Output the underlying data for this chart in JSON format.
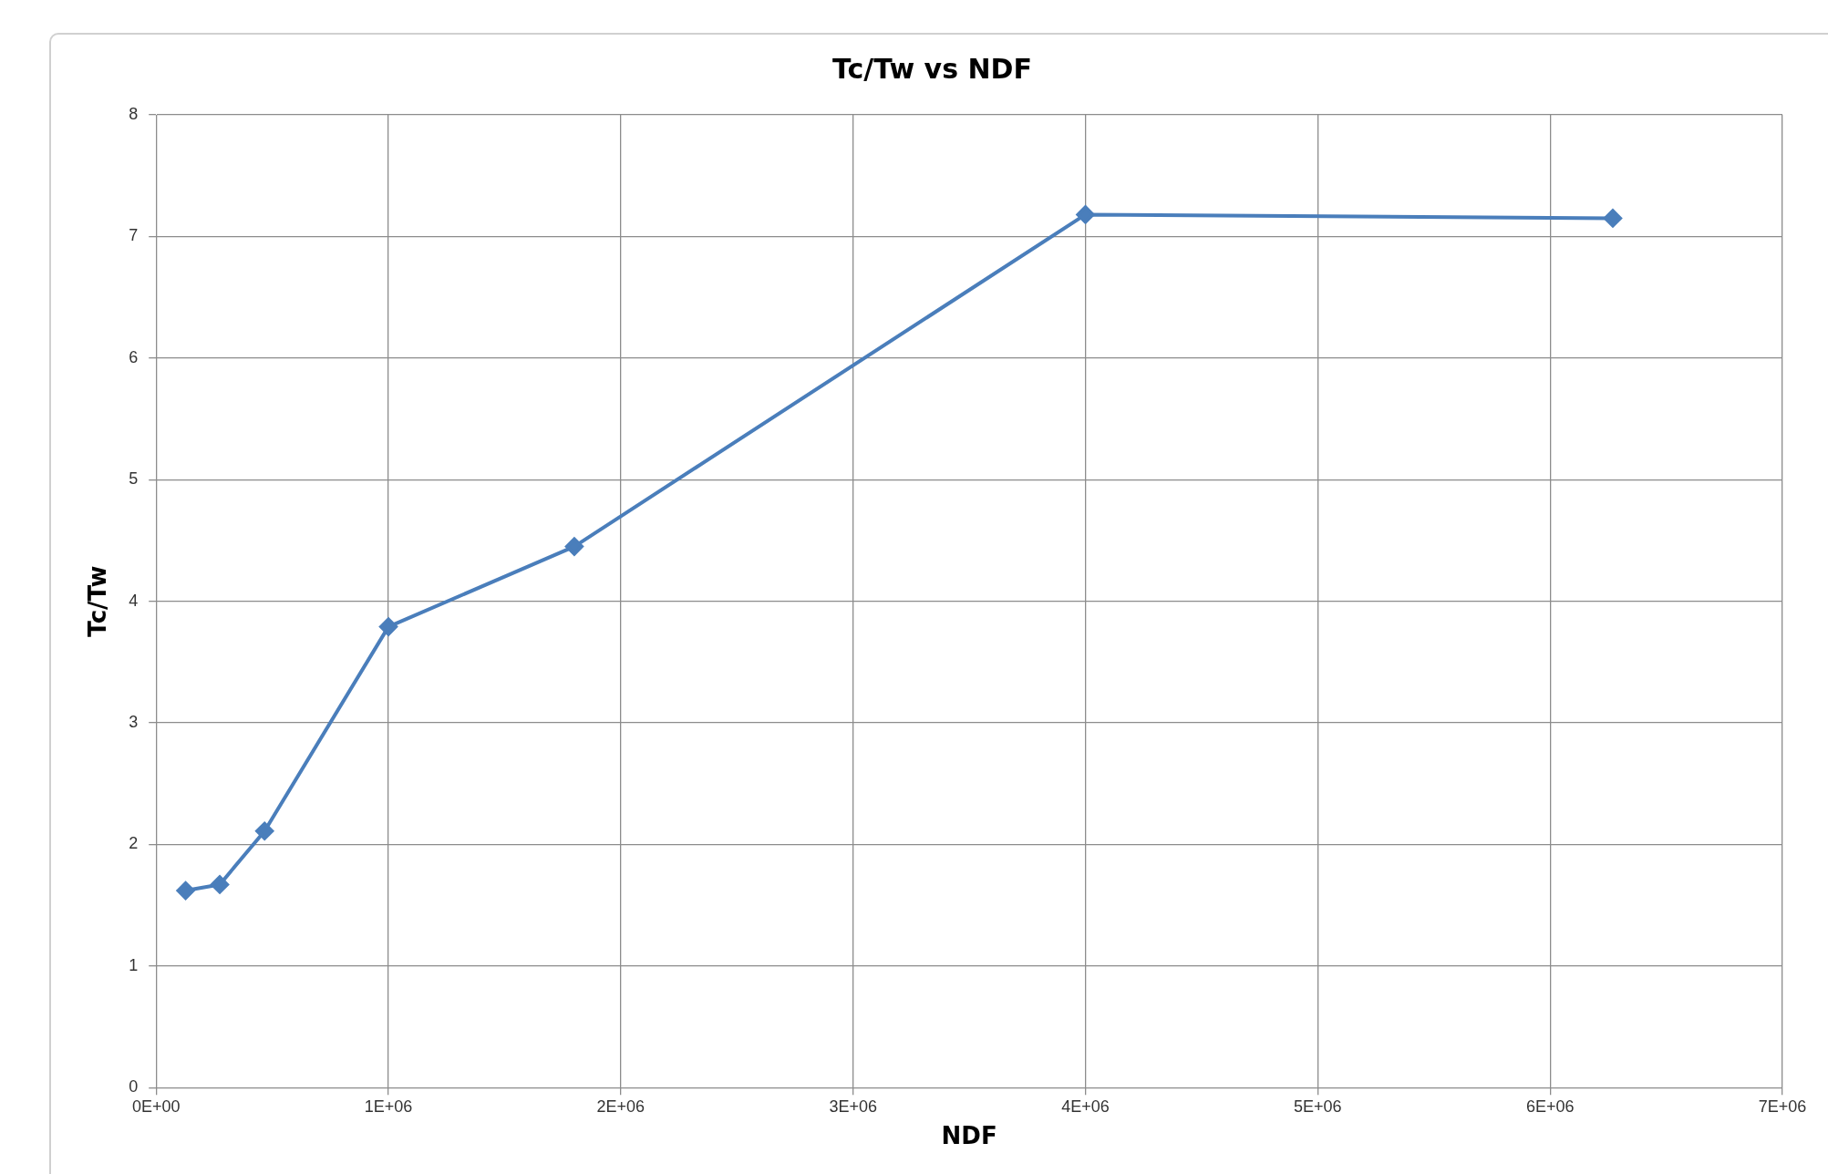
{
  "chart_data": {
    "type": "line",
    "title": "Tc/Tw vs NDF",
    "xlabel": "NDF",
    "ylabel": "Tc/Tw",
    "x": [
      127000,
      274000,
      467000,
      1000000,
      1800000,
      4000000,
      6270000
    ],
    "series": [
      {
        "color": "#4a7ebb",
        "values": [
          1.62,
          1.67,
          2.11,
          3.79,
          4.45,
          7.18,
          7.15
        ]
      }
    ],
    "xlim": [
      0,
      7000000
    ],
    "xticks": [
      {
        "value": 0,
        "label": "0E+00"
      },
      {
        "value": 1000000,
        "label": "1E+06"
      },
      {
        "value": 2000000,
        "label": "2E+06"
      },
      {
        "value": 3000000,
        "label": "3E+06"
      },
      {
        "value": 4000000,
        "label": "4E+06"
      },
      {
        "value": 5000000,
        "label": "5E+06"
      },
      {
        "value": 6000000,
        "label": "6E+06"
      },
      {
        "value": 7000000,
        "label": "7E+06"
      }
    ],
    "ylim": [
      0,
      8
    ],
    "yticks": [
      0,
      1,
      2,
      3,
      4,
      5,
      6,
      7,
      8
    ],
    "grid": true,
    "legend": false,
    "marker": "diamond",
    "line_style": "solid"
  }
}
